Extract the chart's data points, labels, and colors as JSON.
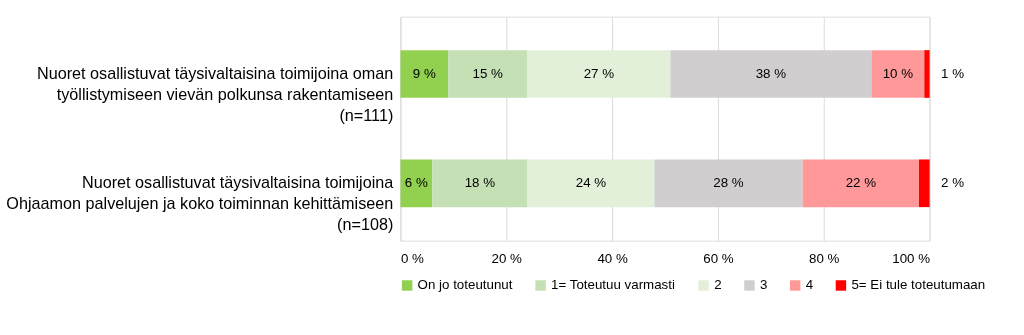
{
  "chart_data": {
    "type": "bar",
    "orientation": "horizontal",
    "stacked": true,
    "categories": [
      "Nuoret osallistuvat täysivaltaisina toimijoina oman työllistymiseen vievän polkunsa rakentamiseen (n=111)",
      "Nuoret osallistuvat täysivaltaisina toimijoina Ohjaamon palvelujen ja koko toiminnan kehittämiseen (n=108)"
    ],
    "series": [
      {
        "name": "On jo toteutunut",
        "color": "#92d050",
        "values": [
          9,
          6
        ],
        "value_labels": [
          "9 %",
          "6 %"
        ]
      },
      {
        "name": "1= Toteutuu varmasti",
        "color": "#c5e0b4",
        "values": [
          15,
          18
        ],
        "value_labels": [
          "15 %",
          "18 %"
        ]
      },
      {
        "name": "2",
        "color": "#e2f0d9",
        "values": [
          27,
          24
        ],
        "value_labels": [
          "27 %",
          "24 %"
        ]
      },
      {
        "name": "3",
        "color": "#d0cece",
        "values": [
          38,
          28
        ],
        "value_labels": [
          "38 %",
          "28 %"
        ]
      },
      {
        "name": "4",
        "color": "#ff9999",
        "values": [
          10,
          22
        ],
        "value_labels": [
          "10 %",
          "22 %"
        ]
      },
      {
        "name": "5= Ei tule toteutumaan",
        "color": "#ff0000",
        "values": [
          1,
          2
        ],
        "value_labels": [
          "1 %",
          "2 %"
        ]
      }
    ],
    "xlim": [
      0,
      100
    ],
    "xticks": [
      {
        "value": 0,
        "label": "0 %"
      },
      {
        "value": 20,
        "label": "20 %"
      },
      {
        "value": 40,
        "label": "40 %"
      },
      {
        "value": 60,
        "label": "60 %"
      },
      {
        "value": 80,
        "label": "80 %"
      },
      {
        "value": 100,
        "label": "100 %"
      }
    ],
    "grid": "x",
    "legend": "bottom"
  }
}
